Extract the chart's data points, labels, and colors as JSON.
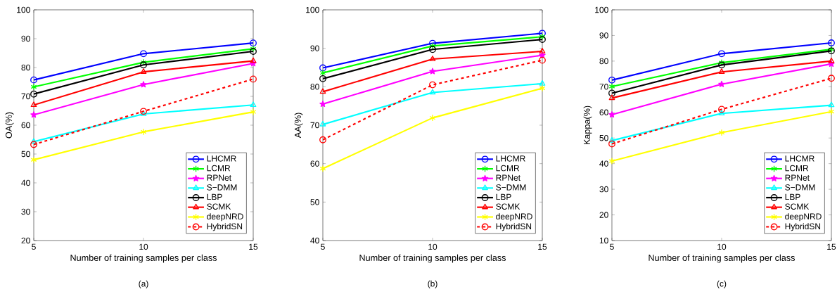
{
  "chart_data": [
    {
      "type": "line",
      "x": [
        5,
        10,
        15
      ],
      "xlim": [
        5,
        15
      ],
      "xticks": [
        5,
        10,
        15
      ],
      "ylim": [
        20,
        100
      ],
      "yticks": [
        20,
        30,
        40,
        50,
        60,
        70,
        80,
        90,
        100
      ],
      "xlabel": "Number of training samples per class",
      "ylabel": "OA(%)",
      "legend": "bottom right",
      "grid": false,
      "annotations": [
        "(a)"
      ],
      "series": [
        {
          "name": "LHCMR",
          "color": "#0000ff",
          "marker": "circle",
          "values": [
            75.7,
            84.8,
            88.5
          ]
        },
        {
          "name": "LCMR",
          "color": "#00ff00",
          "marker": "cross",
          "values": [
            73.3,
            81.8,
            86.5
          ]
        },
        {
          "name": "RPNet",
          "color": "#ff00ff",
          "marker": "star",
          "values": [
            63.6,
            74.1,
            81.4
          ]
        },
        {
          "name": "S−DMM",
          "color": "#00ffff",
          "marker": "triangle",
          "values": [
            54.3,
            63.9,
            67.0
          ]
        },
        {
          "name": "LBP",
          "color": "#000000",
          "marker": "circle",
          "values": [
            70.8,
            80.9,
            85.6
          ]
        },
        {
          "name": "SCMK",
          "color": "#ff0000",
          "marker": "triangle",
          "values": [
            67.0,
            78.5,
            82.3
          ]
        },
        {
          "name": "deepNRD",
          "color": "#ffff00",
          "marker": "cross",
          "values": [
            48.0,
            57.7,
            64.6
          ]
        },
        {
          "name": "HybridSN",
          "color": "#ff0000",
          "marker": "circle",
          "line_style": "dashed",
          "values": [
            53.3,
            64.8,
            76.0
          ]
        }
      ]
    },
    {
      "type": "line",
      "x": [
        5,
        10,
        15
      ],
      "xlim": [
        5,
        15
      ],
      "xticks": [
        5,
        10,
        15
      ],
      "ylim": [
        40,
        100
      ],
      "yticks": [
        40,
        50,
        60,
        70,
        80,
        90,
        100
      ],
      "xlabel": "Number of training samples per class",
      "ylabel": "AA(%)",
      "legend": "bottom right",
      "grid": false,
      "annotations": [
        "(b)"
      ],
      "series": [
        {
          "name": "LHCMR",
          "color": "#0000ff",
          "marker": "circle",
          "values": [
            84.9,
            91.3,
            93.9
          ]
        },
        {
          "name": "LCMR",
          "color": "#00ff00",
          "marker": "cross",
          "values": [
            83.6,
            90.6,
            93.0
          ]
        },
        {
          "name": "RPNet",
          "color": "#ff00ff",
          "marker": "star",
          "values": [
            75.5,
            84.0,
            88.2
          ]
        },
        {
          "name": "S−DMM",
          "color": "#00ffff",
          "marker": "triangle",
          "values": [
            70.2,
            78.5,
            80.8
          ]
        },
        {
          "name": "LBP",
          "color": "#000000",
          "marker": "circle",
          "values": [
            82.1,
            89.7,
            92.3
          ]
        },
        {
          "name": "SCMK",
          "color": "#ff0000",
          "marker": "triangle",
          "values": [
            78.7,
            87.2,
            89.2
          ]
        },
        {
          "name": "deepNRD",
          "color": "#ffff00",
          "marker": "cross",
          "values": [
            58.7,
            71.9,
            79.6
          ]
        },
        {
          "name": "HybridSN",
          "color": "#ff0000",
          "marker": "circle",
          "line_style": "dashed",
          "values": [
            66.2,
            80.5,
            86.9
          ]
        }
      ]
    },
    {
      "type": "line",
      "x": [
        5,
        10,
        15
      ],
      "xlim": [
        5,
        15
      ],
      "xticks": [
        5,
        10,
        15
      ],
      "ylim": [
        10,
        100
      ],
      "yticks": [
        10,
        20,
        30,
        40,
        50,
        60,
        70,
        80,
        90,
        100
      ],
      "xlabel": "Number of training samples per class",
      "ylabel": "Kappa(%)",
      "legend": "bottom right",
      "grid": false,
      "annotations": [
        "(c)"
      ],
      "series": [
        {
          "name": "LHCMR",
          "color": "#0000ff",
          "marker": "circle",
          "values": [
            72.6,
            82.9,
            87.1
          ]
        },
        {
          "name": "LCMR",
          "color": "#00ff00",
          "marker": "cross",
          "values": [
            70.1,
            79.4,
            84.6
          ]
        },
        {
          "name": "RPNet",
          "color": "#ff00ff",
          "marker": "star",
          "values": [
            59.1,
            71.0,
            78.9
          ]
        },
        {
          "name": "S−DMM",
          "color": "#00ffff",
          "marker": "triangle",
          "values": [
            49.0,
            59.6,
            62.8
          ]
        },
        {
          "name": "LBP",
          "color": "#000000",
          "marker": "circle",
          "values": [
            67.5,
            78.5,
            84.0
          ]
        },
        {
          "name": "SCMK",
          "color": "#ff0000",
          "marker": "triangle",
          "values": [
            65.6,
            75.8,
            80.0
          ]
        },
        {
          "name": "deepNRD",
          "color": "#ffff00",
          "marker": "cross",
          "values": [
            41.0,
            52.1,
            60.3
          ]
        },
        {
          "name": "HybridSN",
          "color": "#ff0000",
          "marker": "circle",
          "line_style": "dashed",
          "values": [
            47.7,
            61.2,
            73.3
          ]
        }
      ]
    }
  ]
}
